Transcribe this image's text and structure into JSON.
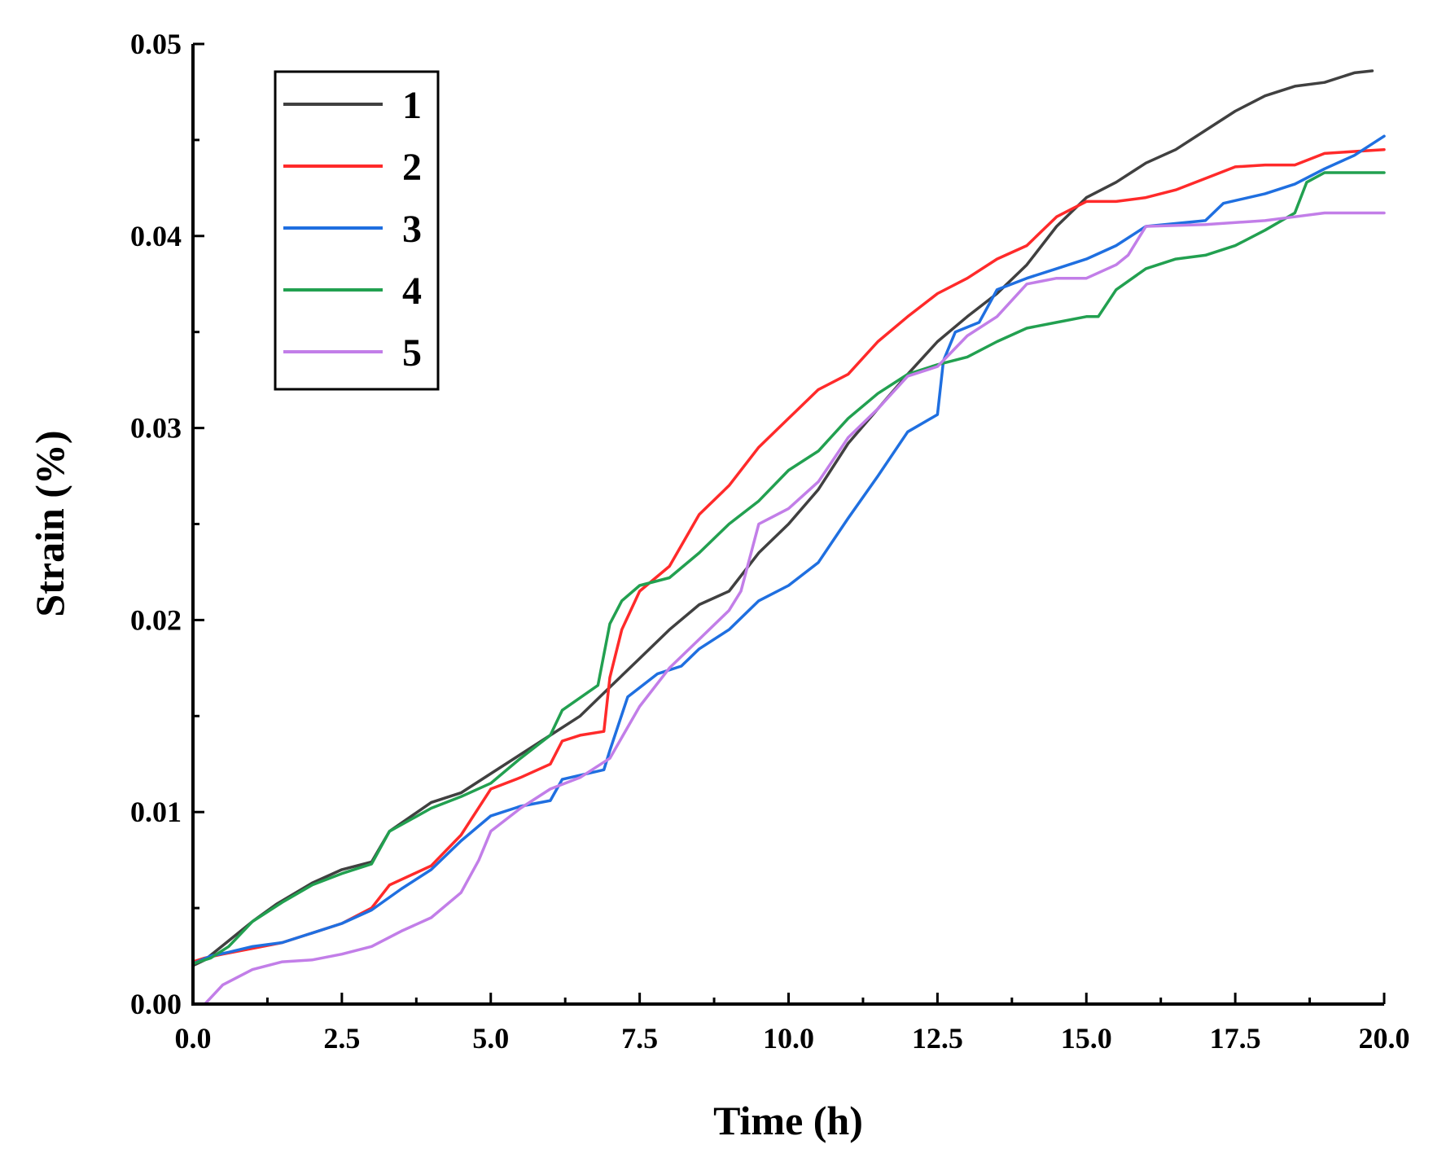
{
  "chart_data": {
    "type": "line",
    "title": "",
    "xlabel": "Time (h)",
    "ylabel": "Strain (%)",
    "xlim": [
      0,
      20
    ],
    "ylim": [
      0,
      0.05
    ],
    "xticks": [
      "0.0",
      "2.5",
      "5.0",
      "7.5",
      "10.0",
      "12.5",
      "15.0",
      "17.5",
      "20.0"
    ],
    "yticks": [
      "0.00",
      "0.01",
      "0.02",
      "0.03",
      "0.04",
      "0.05"
    ],
    "xtick_values": [
      0,
      2.5,
      5,
      7.5,
      10,
      12.5,
      15,
      17.5,
      20
    ],
    "ytick_values": [
      0,
      0.01,
      0.02,
      0.03,
      0.04,
      0.05
    ],
    "grid": false,
    "legend_position": "top-left",
    "series": [
      {
        "name": "1",
        "color": "#404040",
        "x": [
          0.0,
          0.2,
          0.6,
          1.0,
          1.4,
          2.0,
          2.5,
          3.0,
          3.3,
          4.0,
          4.5,
          5.0,
          6.0,
          6.5,
          7.0,
          7.5,
          8.0,
          8.5,
          9.0,
          9.5,
          10.0,
          10.5,
          11.0,
          11.5,
          12.0,
          12.5,
          13.0,
          13.5,
          14.0,
          14.5,
          15.0,
          15.5,
          16.0,
          16.5,
          17.0,
          17.5,
          18.0,
          18.5,
          19.0,
          19.5,
          19.8
        ],
        "values": [
          0.002,
          0.0023,
          0.0033,
          0.0043,
          0.0052,
          0.0063,
          0.007,
          0.0074,
          0.009,
          0.0105,
          0.011,
          0.012,
          0.014,
          0.015,
          0.0165,
          0.018,
          0.0195,
          0.0208,
          0.0215,
          0.0235,
          0.025,
          0.0268,
          0.0292,
          0.031,
          0.0328,
          0.0345,
          0.0358,
          0.037,
          0.0385,
          0.0405,
          0.042,
          0.0428,
          0.0438,
          0.0445,
          0.0455,
          0.0465,
          0.0473,
          0.0478,
          0.048,
          0.0485,
          0.0486
        ]
      },
      {
        "name": "2",
        "color": "#ff2a2a",
        "x": [
          0.0,
          0.2,
          0.5,
          1.0,
          1.5,
          2.0,
          2.5,
          3.0,
          3.3,
          4.0,
          4.5,
          5.0,
          5.5,
          6.0,
          6.2,
          6.5,
          6.9,
          7.0,
          7.2,
          7.5,
          8.0,
          8.5,
          9.0,
          9.5,
          10.0,
          10.5,
          11.0,
          11.5,
          12.0,
          12.5,
          13.0,
          13.5,
          14.0,
          14.5,
          15.0,
          15.5,
          16.0,
          16.5,
          17.0,
          17.5,
          18.0,
          18.5,
          19.0,
          19.5,
          20.0
        ],
        "values": [
          0.0022,
          0.0024,
          0.0026,
          0.0029,
          0.0032,
          0.0037,
          0.0042,
          0.005,
          0.0062,
          0.0072,
          0.0088,
          0.0112,
          0.0118,
          0.0125,
          0.0137,
          0.014,
          0.0142,
          0.017,
          0.0195,
          0.0215,
          0.0228,
          0.0255,
          0.027,
          0.029,
          0.0305,
          0.032,
          0.0328,
          0.0345,
          0.0358,
          0.037,
          0.0378,
          0.0388,
          0.0395,
          0.041,
          0.0418,
          0.0418,
          0.042,
          0.0424,
          0.043,
          0.0436,
          0.0437,
          0.0437,
          0.0443,
          0.0444,
          0.0445
        ]
      },
      {
        "name": "3",
        "color": "#1f6fe0",
        "x": [
          0.0,
          0.3,
          0.6,
          1.0,
          1.5,
          2.0,
          2.5,
          3.0,
          3.5,
          4.0,
          4.5,
          5.0,
          5.5,
          6.0,
          6.2,
          6.9,
          7.0,
          7.3,
          7.8,
          8.2,
          8.5,
          9.0,
          9.5,
          10.0,
          10.5,
          11.0,
          11.5,
          12.0,
          12.5,
          12.6,
          12.8,
          13.2,
          13.5,
          14.0,
          14.5,
          15.0,
          15.5,
          16.0,
          17.0,
          17.3,
          18.0,
          18.5,
          19.0,
          19.5,
          20.0
        ],
        "values": [
          0.0021,
          0.0025,
          0.0027,
          0.003,
          0.0032,
          0.0037,
          0.0042,
          0.0049,
          0.006,
          0.007,
          0.0085,
          0.0098,
          0.0103,
          0.0106,
          0.0117,
          0.0122,
          0.0132,
          0.016,
          0.0172,
          0.0176,
          0.0185,
          0.0195,
          0.021,
          0.0218,
          0.023,
          0.0253,
          0.0275,
          0.0298,
          0.0307,
          0.0335,
          0.035,
          0.0355,
          0.0372,
          0.0378,
          0.0383,
          0.0388,
          0.0395,
          0.0405,
          0.0408,
          0.0417,
          0.0422,
          0.0427,
          0.0435,
          0.0442,
          0.0452
        ]
      },
      {
        "name": "4",
        "color": "#22a050",
        "x": [
          0.0,
          0.3,
          0.6,
          1.0,
          1.5,
          2.0,
          2.5,
          3.0,
          3.3,
          4.0,
          4.5,
          5.0,
          5.5,
          6.0,
          6.2,
          6.8,
          7.0,
          7.2,
          7.5,
          8.0,
          8.5,
          9.0,
          9.5,
          10.0,
          10.5,
          11.0,
          11.5,
          12.0,
          12.5,
          13.0,
          13.5,
          14.0,
          14.5,
          15.0,
          15.2,
          15.5,
          16.0,
          16.5,
          17.0,
          17.5,
          18.0,
          18.5,
          18.7,
          19.0,
          20.0
        ],
        "values": [
          0.0021,
          0.0024,
          0.003,
          0.0043,
          0.0053,
          0.0062,
          0.0068,
          0.0073,
          0.009,
          0.0102,
          0.0108,
          0.0115,
          0.0128,
          0.014,
          0.0153,
          0.0166,
          0.0198,
          0.021,
          0.0218,
          0.0222,
          0.0235,
          0.025,
          0.0262,
          0.0278,
          0.0288,
          0.0305,
          0.0318,
          0.0328,
          0.0333,
          0.0337,
          0.0345,
          0.0352,
          0.0355,
          0.0358,
          0.0358,
          0.0372,
          0.0383,
          0.0388,
          0.039,
          0.0395,
          0.0403,
          0.0412,
          0.0428,
          0.0433,
          0.0433
        ]
      },
      {
        "name": "5",
        "color": "#c27ee8",
        "x": [
          0.2,
          0.5,
          1.0,
          1.5,
          2.0,
          2.5,
          3.0,
          3.5,
          4.0,
          4.5,
          4.8,
          5.0,
          5.5,
          6.0,
          6.5,
          7.0,
          7.5,
          8.0,
          8.5,
          9.0,
          9.2,
          9.5,
          10.0,
          10.5,
          11.0,
          11.5,
          12.0,
          12.5,
          13.0,
          13.5,
          14.0,
          14.5,
          15.0,
          15.5,
          15.7,
          16.0,
          17.0,
          18.0,
          18.5,
          19.0,
          20.0
        ],
        "values": [
          0.0,
          0.001,
          0.0018,
          0.0022,
          0.0023,
          0.0026,
          0.003,
          0.0038,
          0.0045,
          0.0058,
          0.0075,
          0.009,
          0.0102,
          0.0112,
          0.0118,
          0.0128,
          0.0155,
          0.0175,
          0.019,
          0.0205,
          0.0215,
          0.025,
          0.0258,
          0.0272,
          0.0295,
          0.031,
          0.0327,
          0.0332,
          0.0348,
          0.0358,
          0.0375,
          0.0378,
          0.0378,
          0.0385,
          0.039,
          0.0405,
          0.0406,
          0.0408,
          0.041,
          0.0412,
          0.0412
        ]
      }
    ]
  }
}
